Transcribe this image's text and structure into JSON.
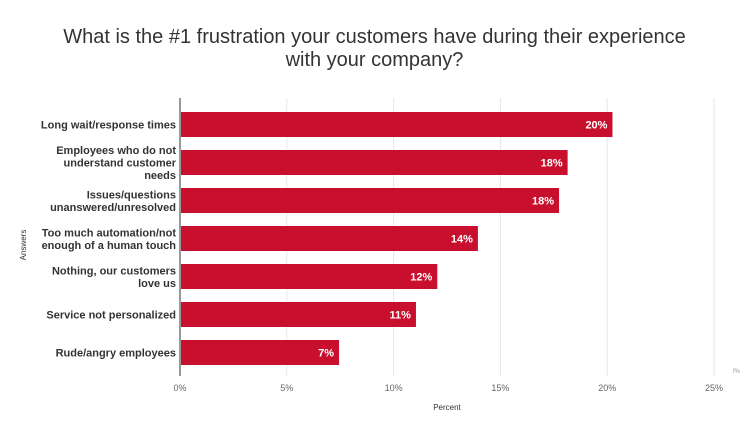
{
  "chart_data": {
    "type": "bar",
    "orientation": "horizontal",
    "title": "What is the #1 frustration your customers have during their experience with your company?",
    "title_lines": [
      "What is the #1 frustration your customers have during their experience",
      "with your company?"
    ],
    "categories": [
      [
        "Long wait/response times"
      ],
      [
        "Employees who do not",
        "understand customer",
        "needs"
      ],
      [
        "Issues/questions",
        "unanswered/unresolved"
      ],
      [
        "Too much automation/not",
        "enough of a human touch"
      ],
      [
        "Nothing, our customers",
        "love us"
      ],
      [
        "Service not personalized"
      ],
      [
        "Rude/angry employees"
      ]
    ],
    "values": [
      20.2,
      18.1,
      17.7,
      13.9,
      12.0,
      11.0,
      7.4
    ],
    "value_labels": [
      "20%",
      "18%",
      "18%",
      "14%",
      "12%",
      "11%",
      "7%"
    ],
    "xlabel": "Percent",
    "ylabel": "Answers",
    "xlim": [
      0,
      25
    ],
    "xticks": [
      0,
      5,
      10,
      15,
      20,
      25
    ],
    "xtick_labels": [
      "0%",
      "5%",
      "10%",
      "15%",
      "20%",
      "25%"
    ],
    "grid": true,
    "legend": false,
    "corner_note": "f%",
    "bar_color": "#c8102e",
    "grid_color": "#e6e6e6"
  }
}
